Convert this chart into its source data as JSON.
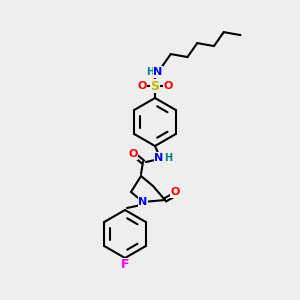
{
  "bg_color": "#eeeeee",
  "bond_color": "#000000",
  "atom_colors": {
    "N": "#0000ff",
    "O": "#ff0000",
    "S": "#bbbb00",
    "F": "#ff00ff",
    "H": "#008080",
    "C": "#000000"
  },
  "figsize": [
    3.0,
    3.0
  ],
  "dpi": 100
}
